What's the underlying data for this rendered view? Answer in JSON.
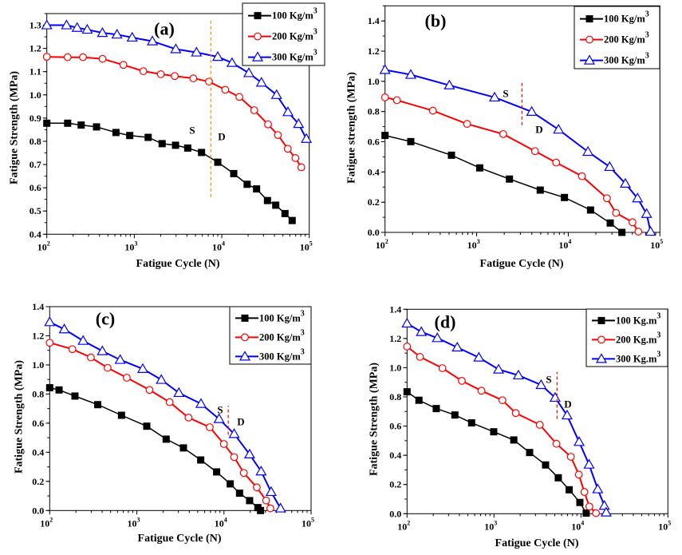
{
  "chart_data": [
    {
      "type": "line",
      "panel_label": "(a)",
      "xlabel": "Fatigue Cycle (N)",
      "ylabel": "Fatigue Strength (MPa)",
      "xscale": "log",
      "xlim": [
        100,
        100000
      ],
      "ylim": [
        0.4,
        1.35
      ],
      "xticks": [
        {
          "base": "10",
          "exp": "2",
          "value": 100
        },
        {
          "base": "10",
          "exp": "3",
          "value": 1000
        },
        {
          "base": "10",
          "exp": "4",
          "value": 10000
        },
        {
          "base": "10",
          "exp": "5",
          "value": 100000
        }
      ],
      "yticks": [
        {
          "label": "0.4",
          "value": 0.4
        },
        {
          "label": "0.5",
          "value": 0.5
        },
        {
          "label": "0.6",
          "value": 0.6
        },
        {
          "label": "0.7",
          "value": 0.7
        },
        {
          "label": "0.8",
          "value": 0.8
        },
        {
          "label": "0.9",
          "value": 0.9
        },
        {
          "label": "1.0",
          "value": 1.0
        },
        {
          "label": "1.1",
          "value": 1.1
        },
        {
          "label": "1.2",
          "value": 1.2
        },
        {
          "label": "1.3",
          "value": 1.3
        }
      ],
      "ytick_minor_step": 0.05,
      "legend_position": "top-right",
      "divider": {
        "x": 7500,
        "y_range": [
          0.56,
          1.32
        ],
        "color": "#ff8c00",
        "left_text": "S",
        "right_text": "D"
      },
      "series": [
        {
          "name": "100 Kg/m",
          "name_sup": "3",
          "color": "#000000",
          "marker": "square",
          "x": [
            100,
            173,
            247,
            370,
            617,
            887,
            1440,
            2080,
            2960,
            4080,
            5870,
            9000,
            13700,
            19500,
            25000,
            33300,
            41400,
            52800,
            63800
          ],
          "y": [
            0.878,
            0.878,
            0.87,
            0.862,
            0.838,
            0.825,
            0.817,
            0.79,
            0.783,
            0.771,
            0.752,
            0.71,
            0.661,
            0.615,
            0.595,
            0.545,
            0.525,
            0.489,
            0.459
          ]
        },
        {
          "name": "200 Kg/m",
          "name_sup": "3",
          "color": "#ff0000",
          "marker": "circle",
          "x": [
            100,
            173,
            259,
            434,
            750,
            1270,
            2010,
            2900,
            4730,
            7140,
            10960,
            15900,
            23500,
            33800,
            43800,
            56800,
            69500,
            81100
          ],
          "y": [
            1.164,
            1.162,
            1.162,
            1.155,
            1.129,
            1.102,
            1.089,
            1.081,
            1.071,
            1.057,
            1.022,
            0.991,
            0.934,
            0.873,
            0.827,
            0.768,
            0.728,
            0.688
          ]
        },
        {
          "name": "300 Kg/m",
          "name_sup": "3",
          "color": "#0000ff",
          "marker": "triangle",
          "x": [
            100,
            168,
            222,
            290,
            432,
            634,
            946,
            1610,
            2980,
            5140,
            9000,
            13100,
            20400,
            28400,
            42300,
            57100,
            75500,
            92700
          ],
          "y": [
            1.3,
            1.3,
            1.289,
            1.281,
            1.267,
            1.26,
            1.247,
            1.231,
            1.197,
            1.183,
            1.164,
            1.138,
            1.094,
            1.053,
            1.0,
            0.926,
            0.875,
            0.811
          ]
        }
      ]
    },
    {
      "type": "line",
      "panel_label": "(b)",
      "xlabel": "Fatigue Cycle (N)",
      "ylabel": "Fatigue strength (MPa)",
      "xscale": "log",
      "xlim": [
        100,
        100000
      ],
      "ylim": [
        0.0,
        1.5
      ],
      "xticks": [
        {
          "base": "10",
          "exp": "2",
          "value": 100
        },
        {
          "base": "10",
          "exp": "3",
          "value": 1000
        },
        {
          "base": "10",
          "exp": "4",
          "value": 10000
        },
        {
          "base": "10",
          "exp": "5",
          "value": 100000
        }
      ],
      "yticks": [
        {
          "label": "0.0",
          "value": 0.0
        },
        {
          "label": "0.2",
          "value": 0.2
        },
        {
          "label": "0.4",
          "value": 0.4
        },
        {
          "label": "0.6",
          "value": 0.6
        },
        {
          "label": "0.8",
          "value": 0.8
        },
        {
          "label": "1.0",
          "value": 1.0
        },
        {
          "label": "1.2",
          "value": 1.2
        },
        {
          "label": "1.4",
          "value": 1.4
        }
      ],
      "ytick_minor_step": 0.1,
      "legend_position": "top-right",
      "divider": {
        "x": 3120,
        "y_range": [
          0.71,
          0.99
        ],
        "color": "#ff0000",
        "left_text": "S",
        "right_text": "D"
      },
      "series": [
        {
          "name": "100 Kg/m",
          "name_sup": "3",
          "color": "#000000",
          "marker": "square",
          "x": [
            100,
            191,
            531,
            1080,
            2280,
            4940,
            9080,
            17500,
            28700,
            38500
          ],
          "y": [
            0.642,
            0.601,
            0.511,
            0.427,
            0.353,
            0.28,
            0.231,
            0.148,
            0.062,
            0.0
          ]
        },
        {
          "name": "200 Kg/m",
          "name_sup": "3",
          "color": "#ff0000",
          "marker": "circle",
          "x": [
            100,
            135,
            333,
            787,
            1950,
            4330,
            7380,
            14100,
            26400,
            33200,
            50200,
            58200
          ],
          "y": [
            0.894,
            0.875,
            0.806,
            0.718,
            0.651,
            0.538,
            0.462,
            0.372,
            0.226,
            0.129,
            0.067,
            0.005
          ]
        },
        {
          "name": "300 Kg/m",
          "name_sup": "3",
          "color": "#0000ff",
          "marker": "triangle",
          "x": [
            100,
            191,
            504,
            1570,
            3990,
            7830,
            16400,
            28300,
            42000,
            57000,
            71600,
            79100
          ],
          "y": [
            1.076,
            1.044,
            0.974,
            0.894,
            0.799,
            0.681,
            0.534,
            0.434,
            0.323,
            0.226,
            0.123,
            0.005
          ]
        }
      ]
    },
    {
      "type": "line",
      "panel_label": "(c)",
      "xlabel": "Fatigue Cycle (N)",
      "ylabel": "Fatigue Strength (MPa)",
      "xscale": "log",
      "xlim": [
        100,
        100000
      ],
      "ylim": [
        0.0,
        1.4
      ],
      "xticks": [
        {
          "base": "10",
          "exp": "2",
          "value": 100
        },
        {
          "base": "10",
          "exp": "3",
          "value": 1000
        },
        {
          "base": "10",
          "exp": "4",
          "value": 10000
        },
        {
          "base": "10",
          "exp": "5",
          "value": 100000
        }
      ],
      "yticks": [
        {
          "label": "0.0",
          "value": 0.0
        },
        {
          "label": "0.2",
          "value": 0.2
        },
        {
          "label": "0.4",
          "value": 0.4
        },
        {
          "label": "0.6",
          "value": 0.6
        },
        {
          "label": "0.8",
          "value": 0.8
        },
        {
          "label": "1.0",
          "value": 1.0
        },
        {
          "label": "1.2",
          "value": 1.2
        },
        {
          "label": "1.4",
          "value": 1.4
        }
      ],
      "ytick_minor_step": 0.1,
      "legend_position": "top-right",
      "divider": {
        "x": 11200,
        "y_range": [
          0.52,
          0.72
        ],
        "color": "#ff0000",
        "left_text": "S",
        "right_text": "D"
      },
      "series": [
        {
          "name": "100 Kg/m",
          "name_sup": "3",
          "color": "#000000",
          "marker": "square",
          "x": [
            100,
            128,
            195,
            356,
            667,
            1300,
            2170,
            3430,
            5410,
            8240,
            11800,
            15100,
            19700,
            24500,
            26300
          ],
          "y": [
            0.843,
            0.828,
            0.786,
            0.727,
            0.654,
            0.579,
            0.49,
            0.43,
            0.347,
            0.265,
            0.183,
            0.119,
            0.068,
            0.02,
            0.0
          ]
        },
        {
          "name": "200 Kg/m",
          "name_sup": "3",
          "color": "#ff0000",
          "marker": "circle",
          "x": [
            100,
            182,
            297,
            462,
            767,
            1400,
            2380,
            3920,
            6870,
            9980,
            13100,
            16900,
            23800,
            30500,
            34100
          ],
          "y": [
            1.152,
            1.108,
            1.051,
            0.98,
            0.912,
            0.828,
            0.744,
            0.638,
            0.572,
            0.457,
            0.367,
            0.258,
            0.159,
            0.069,
            0.015
          ]
        },
        {
          "name": "300 Kg/m",
          "name_sup": "3",
          "color": "#0000ff",
          "marker": "triangle",
          "x": [
            100,
            147,
            242,
            402,
            644,
            1170,
            1910,
            3040,
            5450,
            8790,
            13100,
            19700,
            26700,
            34800,
            44600
          ],
          "y": [
            1.294,
            1.245,
            1.166,
            1.095,
            1.035,
            0.973,
            0.898,
            0.808,
            0.733,
            0.629,
            0.526,
            0.386,
            0.269,
            0.128,
            0.015
          ]
        }
      ]
    },
    {
      "type": "line",
      "panel_label": "(d)",
      "xlabel": "Fatigue Cycle (N)",
      "ylabel": "Fatigue Strength (MPa)",
      "xscale": "log",
      "xlim": [
        100,
        100000
      ],
      "ylim": [
        0.0,
        1.4
      ],
      "xticks": [
        {
          "base": "10",
          "exp": "2",
          "value": 100
        },
        {
          "base": "10",
          "exp": "3",
          "value": 1000
        },
        {
          "base": "10",
          "exp": "4",
          "value": 10000
        },
        {
          "base": "10",
          "exp": "5",
          "value": 100000
        }
      ],
      "yticks": [
        {
          "label": "0.0",
          "value": 0.0
        },
        {
          "label": "0.2",
          "value": 0.2
        },
        {
          "label": "0.4",
          "value": 0.4
        },
        {
          "label": "0.6",
          "value": 0.6
        },
        {
          "label": "0.8",
          "value": 0.8
        },
        {
          "label": "1.0",
          "value": 1.0
        },
        {
          "label": "1.2",
          "value": 1.2
        },
        {
          "label": "1.4",
          "value": 1.4
        }
      ],
      "ytick_minor_step": 0.1,
      "legend_position": "top-right",
      "divider": {
        "x": 5310,
        "y_range": [
          0.65,
          0.97
        ],
        "color": "#ff0000",
        "left_text": "S",
        "right_text": "D"
      },
      "series": [
        {
          "name": "100 Kg.m",
          "name_sup": "3",
          "color": "#000000",
          "marker": "square",
          "x": [
            100,
            137,
            217,
            355,
            553,
            993,
            1690,
            2570,
            3920,
            5490,
            7330,
            9720,
            11500
          ],
          "y": [
            0.835,
            0.777,
            0.72,
            0.676,
            0.622,
            0.561,
            0.505,
            0.419,
            0.334,
            0.246,
            0.164,
            0.077,
            0.004
          ]
        },
        {
          "name": "200 Kg.m",
          "name_sup": "3",
          "color": "#ff0000",
          "marker": "circle",
          "x": [
            100,
            141,
            255,
            427,
            718,
            1250,
            1780,
            3360,
            5230,
            7660,
            9460,
            10960,
            12500,
            14900
          ],
          "y": [
            1.145,
            1.074,
            0.997,
            0.91,
            0.842,
            0.777,
            0.689,
            0.609,
            0.479,
            0.39,
            0.268,
            0.149,
            0.049,
            0.004
          ]
        },
        {
          "name": "300 Kg.m",
          "name_sup": "3",
          "color": "#0000ff",
          "marker": "triangle",
          "x": [
            100,
            146,
            223,
            378,
            670,
            1130,
            1910,
            3480,
            5050,
            6930,
            9530,
            12400,
            15600,
            18600,
            19500
          ],
          "y": [
            1.303,
            1.245,
            1.203,
            1.139,
            1.07,
            0.988,
            0.948,
            0.882,
            0.795,
            0.674,
            0.492,
            0.337,
            0.168,
            0.055,
            0.009
          ]
        }
      ]
    }
  ]
}
